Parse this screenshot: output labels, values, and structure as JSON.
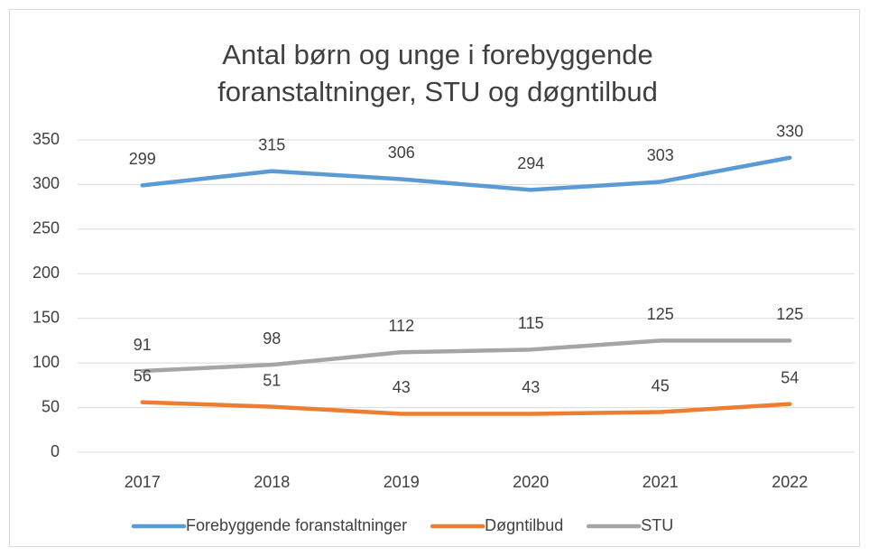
{
  "chart_data": {
    "type": "line",
    "title": [
      "Antal børn og unge i forebyggende",
      "foranstaltninger, STU og døgntilbud"
    ],
    "categories": [
      "2017",
      "2018",
      "2019",
      "2020",
      "2021",
      "2022"
    ],
    "series": [
      {
        "name": "Forebyggende foranstaltninger",
        "color": "#5b9bd5",
        "values": [
          299,
          315,
          306,
          294,
          303,
          330
        ]
      },
      {
        "name": "Døgntilbud",
        "color": "#ed7d31",
        "values": [
          56,
          51,
          43,
          43,
          45,
          54
        ]
      },
      {
        "name": "STU",
        "color": "#a5a5a5",
        "values": [
          91,
          98,
          112,
          115,
          125,
          125
        ]
      }
    ],
    "ylim": [
      0,
      350
    ],
    "yticks": [
      0,
      50,
      100,
      150,
      200,
      250,
      300,
      350
    ],
    "grid": true,
    "legend": "bottom"
  }
}
